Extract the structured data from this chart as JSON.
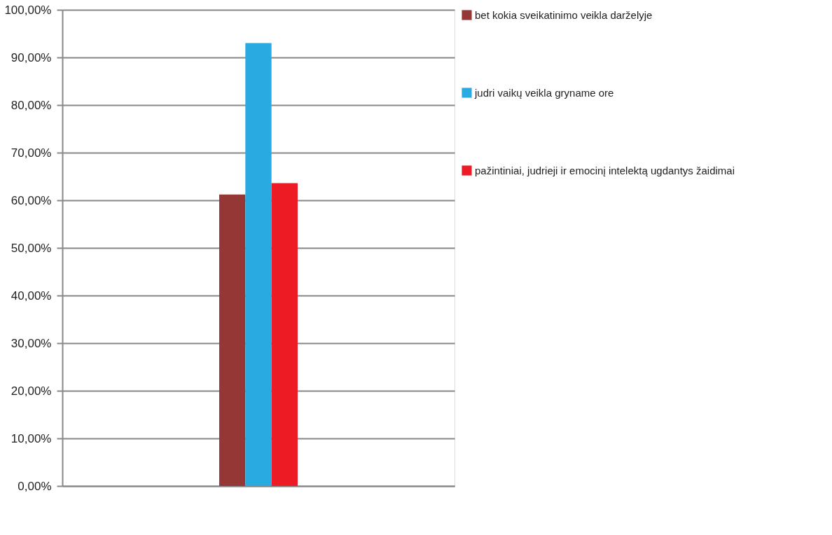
{
  "chart_data": {
    "type": "bar",
    "categories": [
      null
    ],
    "series": [
      {
        "name": "bet kokia sveikatinimo veikla darželyje",
        "color": "#953735",
        "values": [
          61.2
        ]
      },
      {
        "name": "judri vaikų veikla gryname ore",
        "color": "#29abe2",
        "values": [
          93.0
        ]
      },
      {
        "name": "pažintiniai, judrieji ir emocinį intelektą ugdantys žaidimai",
        "color": "#ed1c24",
        "values": [
          63.6
        ]
      }
    ],
    "ylim": [
      0,
      100
    ],
    "yticks": [
      {
        "value": 0,
        "label": "0,00%"
      },
      {
        "value": 10,
        "label": "10,00%"
      },
      {
        "value": 20,
        "label": "20,00%"
      },
      {
        "value": 30,
        "label": "30,00%"
      },
      {
        "value": 40,
        "label": "40,00%"
      },
      {
        "value": 50,
        "label": "50,00%"
      },
      {
        "value": 60,
        "label": "60,00%"
      },
      {
        "value": 70,
        "label": "70,00%"
      },
      {
        "value": 80,
        "label": "80,00%"
      },
      {
        "value": 90,
        "label": "90,00%"
      },
      {
        "value": 100,
        "label": "100,00%"
      }
    ],
    "grid": "y",
    "legend": "right"
  }
}
